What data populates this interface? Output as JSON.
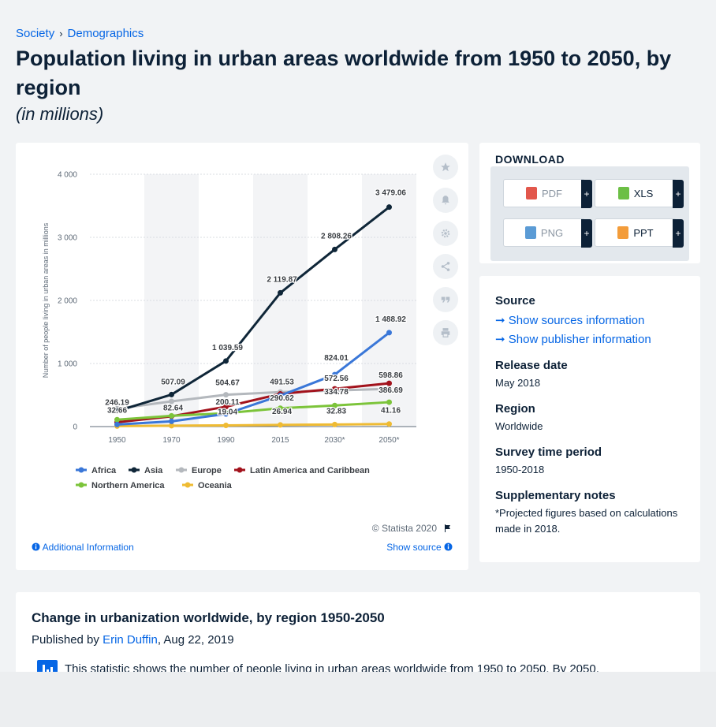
{
  "breadcrumb": {
    "item1": "Society",
    "separator": "›",
    "item2": "Demographics"
  },
  "page": {
    "title": "Population living in urban areas worldwide from 1950 to 2050, by region",
    "subtitle": "(in millions)"
  },
  "chart_data": {
    "type": "line",
    "x": [
      "1950",
      "1970",
      "1990",
      "2015",
      "2030*",
      "2050*"
    ],
    "ylabel": "Number of people living in urban areas in millions",
    "ylim": [
      0,
      4000
    ],
    "yticks": [
      0,
      1000,
      2000,
      3000,
      4000
    ],
    "ytick_labels": [
      "0",
      "1 000",
      "2 000",
      "3 000",
      "4 000"
    ],
    "grid": true,
    "legend_position": "bottom",
    "series": [
      {
        "name": "Africa",
        "color": "#3a77d8",
        "values": [
          32.66,
          82.64,
          200.11,
          491.53,
          824.01,
          1488.92
        ]
      },
      {
        "name": "Asia",
        "color": "#0f2638",
        "values": [
          246.19,
          507.09,
          1039.59,
          2119.87,
          2808.26,
          3479.06
        ]
      },
      {
        "name": "Europe",
        "color": "#b4b8bd",
        "values": [
          283,
          400,
          504.67,
          547,
          572.56,
          598.86
        ]
      },
      {
        "name": "Latin America and Caribbean",
        "color": "#a2121c",
        "values": [
          69,
          163,
          315,
          518,
          599,
          686
        ]
      },
      {
        "name": "Northern America",
        "color": "#7cc43a",
        "values": [
          110,
          171,
          212,
          290.62,
          334.78,
          386.69
        ]
      },
      {
        "name": "Oceania",
        "color": "#efbb33",
        "values": [
          8,
          14,
          19.04,
          26.94,
          32.83,
          41.16
        ]
      }
    ],
    "data_labels": [
      {
        "text": "246.19",
        "series": "Asia",
        "index": 0
      },
      {
        "text": "32.66",
        "series": "Africa",
        "index": 0
      },
      {
        "text": "507.09",
        "series": "Asia",
        "index": 1
      },
      {
        "text": "82.64",
        "series": "Africa",
        "index": 1
      },
      {
        "text": "1 039.59",
        "series": "Asia",
        "index": 2
      },
      {
        "text": "504.67",
        "series": "Europe",
        "index": 2
      },
      {
        "text": "200.11",
        "series": "Africa",
        "index": 2
      },
      {
        "text": "19.04",
        "series": "Oceania",
        "index": 2
      },
      {
        "text": "2 119.87",
        "series": "Asia",
        "index": 3
      },
      {
        "text": "491.53",
        "series": "Africa",
        "index": 3
      },
      {
        "text": "290.62",
        "series": "Northern America",
        "index": 3
      },
      {
        "text": "26.94",
        "series": "Oceania",
        "index": 3
      },
      {
        "text": "2 808.26",
        "series": "Asia",
        "index": 4
      },
      {
        "text": "824.01",
        "series": "Africa",
        "index": 4
      },
      {
        "text": "572.56",
        "series": "Europe",
        "index": 4
      },
      {
        "text": "334.78",
        "series": "Northern America",
        "index": 4
      },
      {
        "text": "32.83",
        "series": "Oceania",
        "index": 4
      },
      {
        "text": "3 479.06",
        "series": "Asia",
        "index": 5
      },
      {
        "text": "1 488.92",
        "series": "Africa",
        "index": 5
      },
      {
        "text": "598.86",
        "series": "Latin America and Caribbean",
        "index": 5
      },
      {
        "text": "386.69",
        "series": "Northern America",
        "index": 5
      },
      {
        "text": "41.16",
        "series": "Oceania",
        "index": 5
      }
    ]
  },
  "chart_footer": {
    "copyright": "© Statista 2020",
    "additional_info": "Additional Information",
    "show_source": "Show source"
  },
  "tool_icons": [
    "star-icon",
    "bell-icon",
    "gear-icon",
    "share-icon",
    "quote-icon",
    "print-icon"
  ],
  "download": {
    "title": "DOWNLOAD",
    "buttons": [
      {
        "label": "PDF",
        "icon": "pdf-icon",
        "color": "#e2574c"
      },
      {
        "label": "XLS",
        "icon": "xls-icon",
        "color": "#6cbf45"
      },
      {
        "label": "PNG",
        "icon": "png-icon",
        "color": "#5b9bd5"
      },
      {
        "label": "PPT",
        "icon": "ppt-icon",
        "color": "#f39c3a"
      }
    ],
    "plus": "+"
  },
  "info": {
    "source_label": "Source",
    "show_sources": "Show sources information",
    "show_publisher": "Show publisher information",
    "release_date_label": "Release date",
    "release_date": "May 2018",
    "region_label": "Region",
    "region": "Worldwide",
    "survey_label": "Survey time period",
    "survey": "1950-2018",
    "notes_label": "Supplementary notes",
    "notes": "*Projected figures based on calculations made in 2018."
  },
  "description": {
    "title": "Change in urbanization worldwide, by region 1950-2050",
    "published_by": "Published by",
    "author": "Erin Duffin",
    "date": ", Aug 22, 2019",
    "text": "This statistic shows the number of people living in urban areas worldwide from 1950 to 2050. By 2050,"
  }
}
